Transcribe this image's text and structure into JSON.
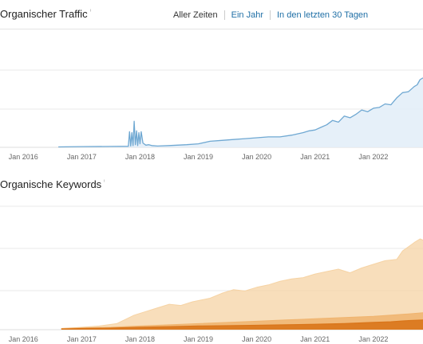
{
  "tabs": [
    {
      "label": "Aller Zeiten",
      "active": true
    },
    {
      "label": "Ein Jahr",
      "active": false
    },
    {
      "label": "In den letzten 30 Tagen",
      "active": false
    }
  ],
  "traffic": {
    "title": "Organischer Traffic",
    "info_icon": "info-icon"
  },
  "keywords": {
    "title": "Organische Keywords",
    "info_icon": "info-icon"
  },
  "colors": {
    "traffic_line": "#6fa8d2",
    "traffic_fill": "#e3eef8",
    "kw_light": "#f6d3a4",
    "kw_mid": "#f0b46f",
    "kw_dark": "#d9751a",
    "grid": "#e8e8e8",
    "link": "#1f6fa6"
  },
  "chart_data": [
    {
      "type": "area",
      "xlabel": "",
      "ylabel": "",
      "x_ticks": [
        "Jan 2016",
        "Jan 2017",
        "Jan 2018",
        "Jan 2019",
        "Jan 2020",
        "Jan 2021",
        "Jan 2022"
      ],
      "xlim": [
        2015.6,
        2022.85
      ],
      "ylim": [
        0,
        100
      ],
      "y_ticks_shown": false,
      "grid": true,
      "series": [
        {
          "x": [
            2016.6,
            2017.0,
            2017.5,
            2017.8,
            2017.82,
            2017.84,
            2017.86,
            2017.88,
            2017.9,
            2017.92,
            2017.94,
            2017.96,
            2017.98,
            2018.0,
            2018.02,
            2018.05,
            2018.1,
            2018.15,
            2018.2,
            2018.3,
            2018.5,
            2018.8,
            2019.0,
            2019.2,
            2019.4,
            2019.6,
            2019.8,
            2020.0,
            2020.2,
            2020.4,
            2020.6,
            2020.8,
            2020.9,
            2021.0,
            2021.1,
            2021.2,
            2021.3,
            2021.4,
            2021.5,
            2021.6,
            2021.7,
            2021.8,
            2021.9,
            2022.0,
            2022.1,
            2022.2,
            2022.3,
            2022.4,
            2022.5,
            2022.6,
            2022.7,
            2022.75,
            2022.8,
            2022.85
          ],
          "values": [
            0.5,
            0.8,
            1,
            1.2,
            18,
            1.5,
            17,
            2,
            30,
            3,
            19,
            2,
            17,
            4,
            18,
            5,
            2.5,
            3,
            2,
            1.5,
            2,
            3,
            4,
            7,
            8,
            9,
            10,
            11,
            12,
            12,
            14,
            17,
            19,
            20,
            23,
            26,
            31,
            29,
            36,
            34,
            38,
            43,
            41,
            45,
            46,
            50,
            49,
            57,
            63,
            64,
            70,
            72,
            78,
            80
          ]
        }
      ]
    },
    {
      "type": "area",
      "xlabel": "",
      "ylabel": "",
      "x_ticks": [
        "Jan 2016",
        "Jan 2017",
        "Jan 2018",
        "Jan 2019",
        "Jan 2020",
        "Jan 2021",
        "Jan 2022"
      ],
      "xlim": [
        2015.6,
        2022.85
      ],
      "ylim": [
        0,
        100
      ],
      "y_ticks_shown": false,
      "grid": true,
      "series": [
        {
          "x": [
            2016.65,
            2017.0,
            2017.3,
            2017.6,
            2017.9,
            2018.1,
            2018.3,
            2018.5,
            2018.7,
            2018.9,
            2019.0,
            2019.2,
            2019.4,
            2019.6,
            2019.8,
            2020.0,
            2020.2,
            2020.4,
            2020.6,
            2020.8,
            2021.0,
            2021.2,
            2021.4,
            2021.6,
            2021.8,
            2022.0,
            2022.2,
            2022.4,
            2022.5,
            2022.7,
            2022.8,
            2022.85
          ],
          "values": [
            1,
            2,
            3,
            5,
            12,
            15,
            18,
            21,
            20,
            23,
            24,
            26,
            30,
            33,
            32,
            35,
            37,
            40,
            42,
            43,
            46,
            48,
            50,
            47,
            51,
            54,
            57,
            58,
            65,
            72,
            75,
            74
          ]
        },
        {
          "x": [
            2016.65,
            2017.0,
            2017.5,
            2018.0,
            2018.5,
            2019.0,
            2019.5,
            2020.0,
            2020.5,
            2021.0,
            2021.5,
            2022.0,
            2022.3,
            2022.6,
            2022.85
          ],
          "values": [
            1,
            1.5,
            2,
            3,
            4,
            5,
            6,
            7,
            8,
            9,
            10,
            11,
            12,
            13,
            14
          ]
        },
        {
          "x": [
            2016.65,
            2017.0,
            2017.5,
            2018.0,
            2018.5,
            2019.0,
            2019.5,
            2020.0,
            2020.5,
            2021.0,
            2021.5,
            2022.0,
            2022.3,
            2022.6,
            2022.85
          ],
          "values": [
            0.5,
            1,
            1.3,
            2,
            2.5,
            3,
            3.3,
            3.6,
            4,
            4.5,
            5,
            6,
            6.5,
            7.5,
            8
          ]
        }
      ]
    }
  ]
}
